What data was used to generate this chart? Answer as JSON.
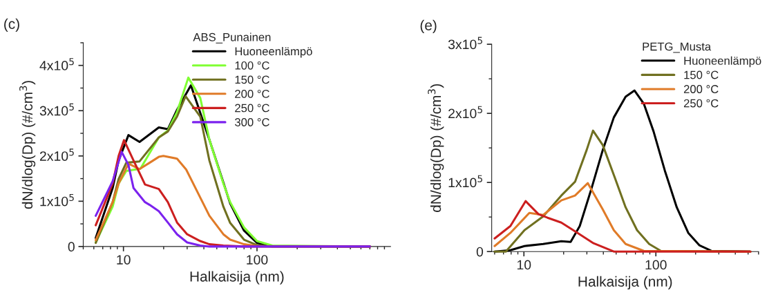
{
  "chart_data": [
    {
      "type": "line",
      "title": "(c)",
      "xlabel": "Halkaisija (nm)",
      "ylabel": "dN/dlog(Dp) (#/cm$^{3}$)",
      "legend_title": "ABS_Punainen",
      "legend": "top right",
      "log": "x",
      "grid": false,
      "line_style": "solid",
      "marker": "none",
      "xlim": [
        5,
        1000
      ],
      "xticks": [
        10,
        100
      ],
      "ylim": [
        0,
        450000
      ],
      "yticks": [
        0,
        {
          "value": 100000,
          "label": "1x10$^{5}$"
        },
        {
          "value": 200000,
          "label": "2x10$^{5}$"
        },
        {
          "value": 300000,
          "label": "3x10$^{5}$"
        },
        {
          "value": 400000,
          "label": "4x10$^{5}$"
        }
      ],
      "series": [
        {
          "name": "Huoneenlämpö",
          "color": "#000000",
          "x": [
            6.2,
            8.3,
            9.2,
            10.9,
            13.2,
            18.4,
            21.5,
            25.2,
            32,
            44,
            63,
            80,
            100,
            130,
            700
          ],
          "values": [
            19000,
            129000,
            190000,
            246000,
            231000,
            263000,
            259000,
            302000,
            356000,
            236000,
            95000,
            35000,
            8000,
            1000,
            0
          ]
        },
        {
          "name": "100 °C",
          "color": "#80ff33",
          "x": [
            6.2,
            8.3,
            9.2,
            10.5,
            13.4,
            18.4,
            21.5,
            25.2,
            30.6,
            37.6,
            44,
            56,
            63,
            80,
            100,
            130,
            700
          ],
          "values": [
            9000,
            88000,
            139000,
            167000,
            172000,
            241000,
            256000,
            297000,
            373000,
            328000,
            236000,
            139000,
            98000,
            42000,
            12000,
            2000,
            0
          ]
        },
        {
          "name": "150 °C",
          "color": "#707020",
          "x": [
            6.2,
            8.3,
            9.2,
            10.5,
            13.2,
            18.4,
            21.5,
            25.2,
            29.2,
            37.6,
            44,
            56,
            63,
            80,
            100,
            130,
            700
          ],
          "values": [
            8000,
            98000,
            149000,
            185000,
            188000,
            241000,
            254000,
            287000,
            332000,
            287000,
            190000,
            88000,
            52000,
            15000,
            3000,
            0,
            0
          ]
        },
        {
          "name": "200 °C",
          "color": "#e07b28",
          "x": [
            6.2,
            8.3,
            9.2,
            10.9,
            13.2,
            15.7,
            18.4,
            19.9,
            25.2,
            29.5,
            44,
            56,
            63,
            80,
            100,
            700
          ],
          "values": [
            14000,
            98000,
            139000,
            183000,
            171000,
            185000,
            198000,
            200000,
            194000,
            170000,
            68000,
            27000,
            15000,
            5000,
            1000,
            0
          ]
        },
        {
          "name": "250 °C",
          "color": "#cc1f1f",
          "x": [
            6.2,
            8.3,
            9.2,
            10.1,
            11.9,
            14.5,
            18.4,
            21.5,
            25.2,
            30,
            37.6,
            44,
            56,
            80,
            700
          ],
          "values": [
            47000,
            139000,
            200000,
            235000,
            190000,
            137000,
            127000,
            98000,
            53000,
            27000,
            12000,
            5000,
            2000,
            0,
            0
          ]
        },
        {
          "name": "300 °C",
          "color": "#7b22ee",
          "x": [
            6.2,
            8.3,
            9.7,
            10.9,
            11.9,
            14.5,
            15.7,
            18.4,
            21.5,
            25.2,
            30,
            37.6,
            44,
            700
          ],
          "values": [
            68000,
            144000,
            209000,
            180000,
            129000,
            98000,
            92000,
            78000,
            53000,
            27000,
            9000,
            2000,
            0,
            0
          ]
        }
      ]
    },
    {
      "type": "line",
      "title": "(e)",
      "xlabel": "Halkaisija (nm)",
      "ylabel": "dN/dlog(Dp) (#/cm$^{3}$)",
      "legend_title": "PETG_Musta",
      "legend": "top right",
      "log": "x",
      "grid": false,
      "line_style": "solid",
      "marker": "none",
      "xlim": [
        5.7,
        600
      ],
      "xticks": [
        10,
        100
      ],
      "ylim": [
        0,
        300000
      ],
      "yticks": [
        0,
        {
          "value": 100000,
          "label": "1x10$^{5}$"
        },
        {
          "value": 200000,
          "label": "2x10$^{5}$"
        },
        {
          "value": 300000,
          "label": "3x10$^{5}$"
        }
      ],
      "series": [
        {
          "name": "Huoneenlämpö",
          "color": "#000000",
          "x": [
            6.0,
            7.9,
            10.1,
            14.0,
            19.2,
            22.6,
            26.5,
            32.5,
            39.6,
            48,
            59,
            68.9,
            81,
            96,
            117,
            144,
            176,
            214,
            263,
            520
          ],
          "values": [
            0,
            2000,
            8000,
            11000,
            15000,
            14000,
            37000,
            91000,
            147000,
            194000,
            224000,
            233000,
            214000,
            174000,
            117000,
            64000,
            27000,
            9000,
            1000,
            0
          ]
        },
        {
          "name": "150 °C",
          "color": "#707020",
          "x": [
            6.0,
            7.3,
            10.1,
            14.0,
            19.2,
            24.4,
            29.9,
            33.4,
            39.6,
            48,
            59,
            72,
            89,
            109,
            520
          ],
          "values": [
            0,
            0,
            31000,
            51000,
            81000,
            101000,
            147000,
            175000,
            154000,
            111000,
            64000,
            31000,
            11000,
            1000,
            0
          ]
        },
        {
          "name": "200 °C",
          "color": "#e07b28",
          "x": [
            6.0,
            7.9,
            11.0,
            14.0,
            19.2,
            24.4,
            30.5,
            39.6,
            48,
            59,
            81,
            520
          ],
          "values": [
            8000,
            27000,
            56000,
            53000,
            74000,
            81000,
            99000,
            61000,
            31000,
            11000,
            1000,
            0
          ]
        },
        {
          "name": "250 °C",
          "color": "#cc1f1f",
          "x": [
            6.0,
            7.9,
            10.3,
            12.9,
            15.1,
            19.2,
            25.5,
            33.7,
            48,
            520
          ],
          "values": [
            19000,
            37000,
            73000,
            54000,
            49000,
            42000,
            27000,
            12000,
            0,
            0
          ]
        }
      ]
    }
  ]
}
